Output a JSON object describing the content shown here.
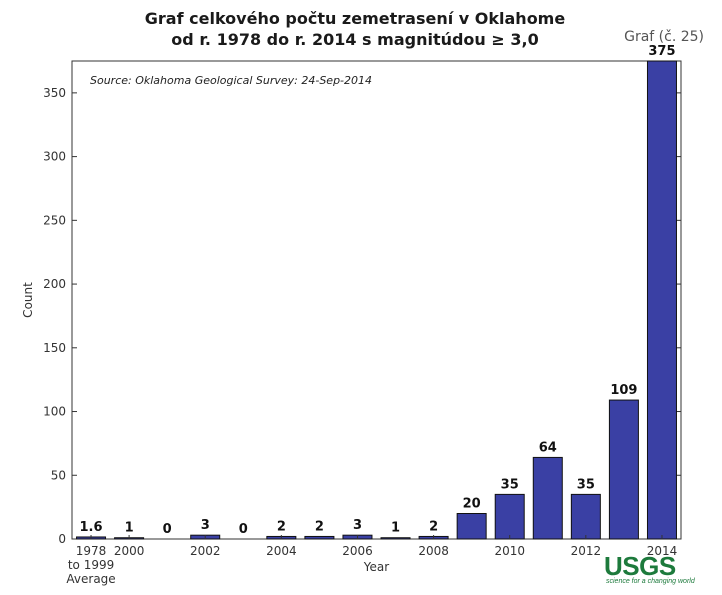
{
  "header": {
    "title_line1": "Graf celkového počtu zemetrasení v Oklahome",
    "title_line2": "od r. 1978 do r. 2014 s magnitúdou ≥ 3,0",
    "figure_label": "Graf (č. 25)"
  },
  "logo": {
    "text": "USGS",
    "tagline": "science for a changing world",
    "color": "#1d7a3c"
  },
  "chart_data": {
    "type": "bar",
    "title": "Graf celkového počtu zemetrasení v Oklahome od r. 1978 do r. 2014 s magnitúdou ≥ 3,0",
    "annotation": "Source: Oklahoma Geological Survey: 24-Sep-2014",
    "xlabel": "Year",
    "ylabel": "Count",
    "ylim": [
      0,
      375
    ],
    "yticks": [
      0,
      50,
      100,
      150,
      200,
      250,
      300,
      350
    ],
    "bar_color": "#3a40a4",
    "grid": false,
    "categories": [
      "1978 to 1999 Average",
      "2000",
      "2001",
      "2002",
      "2003",
      "2004",
      "2005",
      "2006",
      "2007",
      "2008",
      "2009",
      "2010",
      "2011",
      "2012",
      "2013",
      "2014"
    ],
    "values": [
      1.6,
      1,
      0,
      3,
      0,
      2,
      2,
      3,
      1,
      2,
      20,
      35,
      64,
      35,
      109,
      375
    ],
    "value_labels": [
      "1.6",
      "1",
      "0",
      "3",
      "0",
      "2",
      "2",
      "3",
      "1",
      "2",
      "20",
      "35",
      "64",
      "35",
      "109",
      "375"
    ],
    "xtick_labels": [
      {
        "index": 0,
        "lines": [
          "1978",
          "to 1999",
          "Average"
        ]
      },
      {
        "index": 1,
        "lines": [
          "2000"
        ]
      },
      {
        "index": 3,
        "lines": [
          "2002"
        ]
      },
      {
        "index": 5,
        "lines": [
          "2004"
        ]
      },
      {
        "index": 7,
        "lines": [
          "2006"
        ]
      },
      {
        "index": 9,
        "lines": [
          "2008"
        ]
      },
      {
        "index": 11,
        "lines": [
          "2010"
        ]
      },
      {
        "index": 13,
        "lines": [
          "2012"
        ]
      },
      {
        "index": 15,
        "lines": [
          "2014"
        ]
      }
    ]
  }
}
